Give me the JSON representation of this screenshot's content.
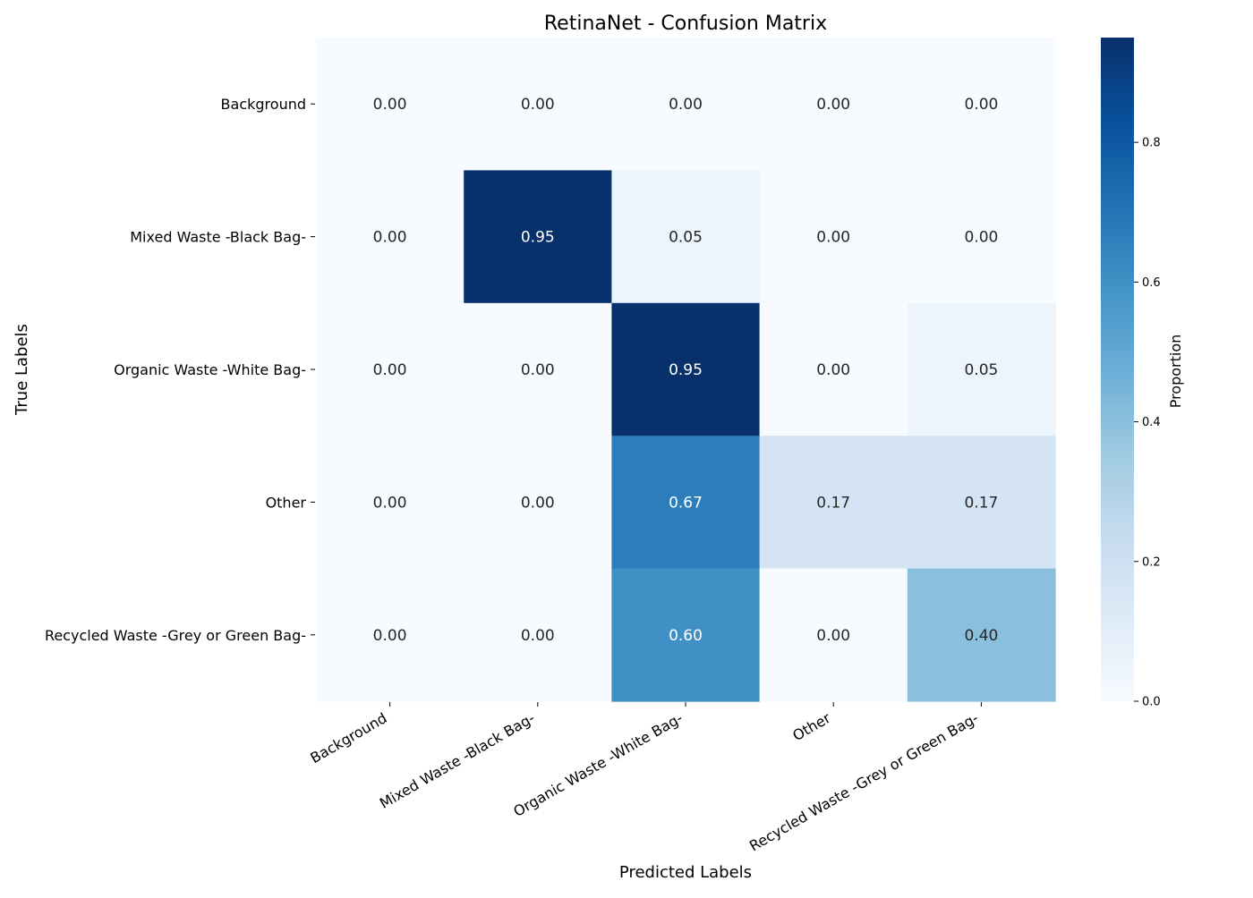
{
  "chart_data": {
    "type": "heatmap",
    "title": "RetinaNet - Confusion Matrix",
    "xlabel": "Predicted Labels",
    "ylabel": "True Labels",
    "x_categories": [
      "Background",
      "Mixed Waste -Black Bag-",
      "Organic Waste -White Bag-",
      "Other",
      "Recycled Waste -Grey or Green Bag-"
    ],
    "y_categories": [
      "Background",
      "Mixed Waste -Black Bag-",
      "Organic Waste -White Bag-",
      "Other",
      "Recycled Waste -Grey or Green Bag-"
    ],
    "values": [
      [
        0.0,
        0.0,
        0.0,
        0.0,
        0.0
      ],
      [
        0.0,
        0.95,
        0.05,
        0.0,
        0.0
      ],
      [
        0.0,
        0.0,
        0.95,
        0.0,
        0.05
      ],
      [
        0.0,
        0.0,
        0.67,
        0.17,
        0.17
      ],
      [
        0.0,
        0.0,
        0.6,
        0.0,
        0.4
      ]
    ],
    "value_format": "0.00",
    "colormap": "Blues",
    "vmin": 0.0,
    "vmax": 0.95,
    "colorbar": {
      "label": "Proportion",
      "ticks": [
        0.0,
        0.2,
        0.4,
        0.6,
        0.8
      ],
      "tick_labels": [
        "0.0",
        "0.2",
        "0.4",
        "0.6",
        "0.8"
      ]
    },
    "grid": false
  }
}
